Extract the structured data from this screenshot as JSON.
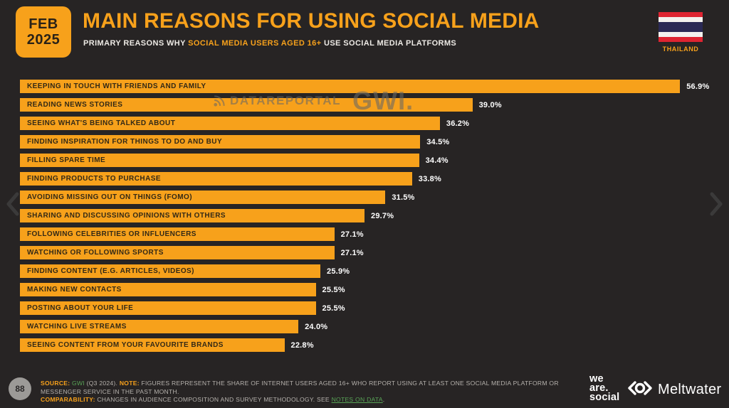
{
  "header": {
    "date_line1": "FEB",
    "date_line2": "2025",
    "title": "MAIN REASONS FOR USING SOCIAL MEDIA",
    "subtitle_prefix": "PRIMARY REASONS WHY ",
    "subtitle_highlight": "SOCIAL MEDIA USERS AGED 16+",
    "subtitle_suffix": " USE SOCIAL MEDIA PLATFORMS",
    "country_label": "THAILAND"
  },
  "watermark": {
    "datareportal": "DATAREPORTAL",
    "gwi": "GWI."
  },
  "chart_data": {
    "type": "bar",
    "orientation": "horizontal",
    "title": "MAIN REASONS FOR USING SOCIAL MEDIA",
    "subtitle": "PRIMARY REASONS WHY SOCIAL MEDIA USERS AGED 16+ USE SOCIAL MEDIA PLATFORMS",
    "region": "THAILAND",
    "date": "FEB 2025",
    "unit": "%",
    "xlim": [
      0,
      59.4
    ],
    "grid": false,
    "legend": false,
    "bar_color": "#F7A11B",
    "categories": [
      "KEEPING IN TOUCH WITH FRIENDS AND FAMILY",
      "READING NEWS STORIES",
      "SEEING WHAT'S BEING TALKED ABOUT",
      "FINDING INSPIRATION FOR THINGS TO DO AND BUY",
      "FILLING SPARE TIME",
      "FINDING PRODUCTS TO PURCHASE",
      "AVOIDING MISSING OUT ON THINGS (FOMO)",
      "SHARING AND DISCUSSING OPINIONS WITH OTHERS",
      "FOLLOWING CELEBRITIES OR INFLUENCERS",
      "WATCHING OR FOLLOWING SPORTS",
      "FINDING CONTENT (E.G. ARTICLES, VIDEOS)",
      "MAKING NEW CONTACTS",
      "POSTING ABOUT YOUR LIFE",
      "WATCHING LIVE STREAMS",
      "SEEING CONTENT FROM YOUR FAVOURITE BRANDS"
    ],
    "values": [
      56.9,
      39.0,
      36.2,
      34.5,
      34.4,
      33.8,
      31.5,
      29.7,
      27.1,
      27.1,
      25.9,
      25.5,
      25.5,
      24.0,
      22.8
    ],
    "value_labels": [
      "56.9%",
      "39.0%",
      "36.2%",
      "34.5%",
      "34.4%",
      "33.8%",
      "31.5%",
      "29.7%",
      "27.1%",
      "27.1%",
      "25.9%",
      "25.5%",
      "25.5%",
      "24.0%",
      "22.8%"
    ]
  },
  "footer": {
    "page_number": "88",
    "source_label": "SOURCE:",
    "source_value": " GWI",
    "source_rest": " (Q3 2024). ",
    "note_label": "NOTE:",
    "note_text": " FIGURES REPRESENT THE SHARE OF INTERNET USERS AGED 16+ WHO REPORT USING AT LEAST ONE SOCIAL MEDIA PLATFORM OR MESSENGER SERVICE IN THE PAST MONTH.",
    "comparability_label": "COMPARABILITY:",
    "comparability_text": " CHANGES IN AUDIENCE COMPOSITION AND SURVEY METHODOLOGY. SEE ",
    "notes_link": "NOTES ON DATA",
    "period": ".",
    "logo_we": "we",
    "logo_are": "are.",
    "logo_social": "social",
    "meltwater_label": "Meltwater"
  },
  "colors": {
    "accent_orange": "#F7A11B",
    "background": "#272424",
    "bar_text": "#332916",
    "value_text": "#FFFFFF",
    "footnote_gray": "#B5B1AC",
    "link_green": "#58A356",
    "flag_red": "#DE2431",
    "flag_blue": "#2B2A55"
  }
}
